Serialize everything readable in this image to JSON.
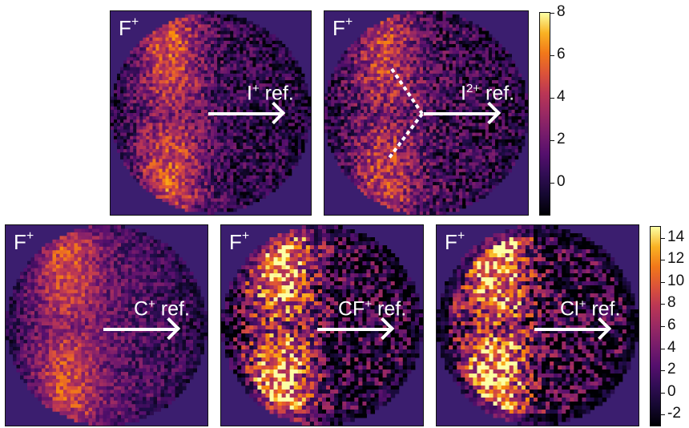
{
  "panels": [
    {
      "id": "I+",
      "ion": "F",
      "ion_charge": "+",
      "ref_species": "I",
      "ref_charge": "+",
      "ref_suffix": " ref."
    },
    {
      "id": "I2+",
      "ion": "F",
      "ion_charge": "+",
      "ref_species": "I",
      "ref_charge": "2+",
      "ref_suffix": " ref."
    },
    {
      "id": "C+",
      "ion": "F",
      "ion_charge": "+",
      "ref_species": "C",
      "ref_charge": "+",
      "ref_suffix": " ref."
    },
    {
      "id": "CF+",
      "ion": "F",
      "ion_charge": "+",
      "ref_species": "CF",
      "ref_charge": "+",
      "ref_suffix": " ref."
    },
    {
      "id": "Cl+",
      "ion": "F",
      "ion_charge": "+",
      "ref_species": "Cl",
      "ref_charge": "+",
      "ref_suffix": " ref."
    }
  ],
  "colors": {
    "colormap": "inferno",
    "background": "#3b1e6f",
    "arrow": "#ffffff"
  },
  "chart_data": [
    {
      "type": "heatmap",
      "row": "top",
      "colorbar": {
        "ticks": [
          8,
          6,
          4,
          2,
          0
        ],
        "range": [
          -1.5,
          8
        ]
      }
    },
    {
      "type": "heatmap",
      "row": "bottom",
      "colorbar": {
        "ticks": [
          14,
          12,
          10,
          8,
          6,
          4,
          2,
          0,
          -2
        ],
        "range": [
          -3,
          15
        ]
      }
    }
  ]
}
